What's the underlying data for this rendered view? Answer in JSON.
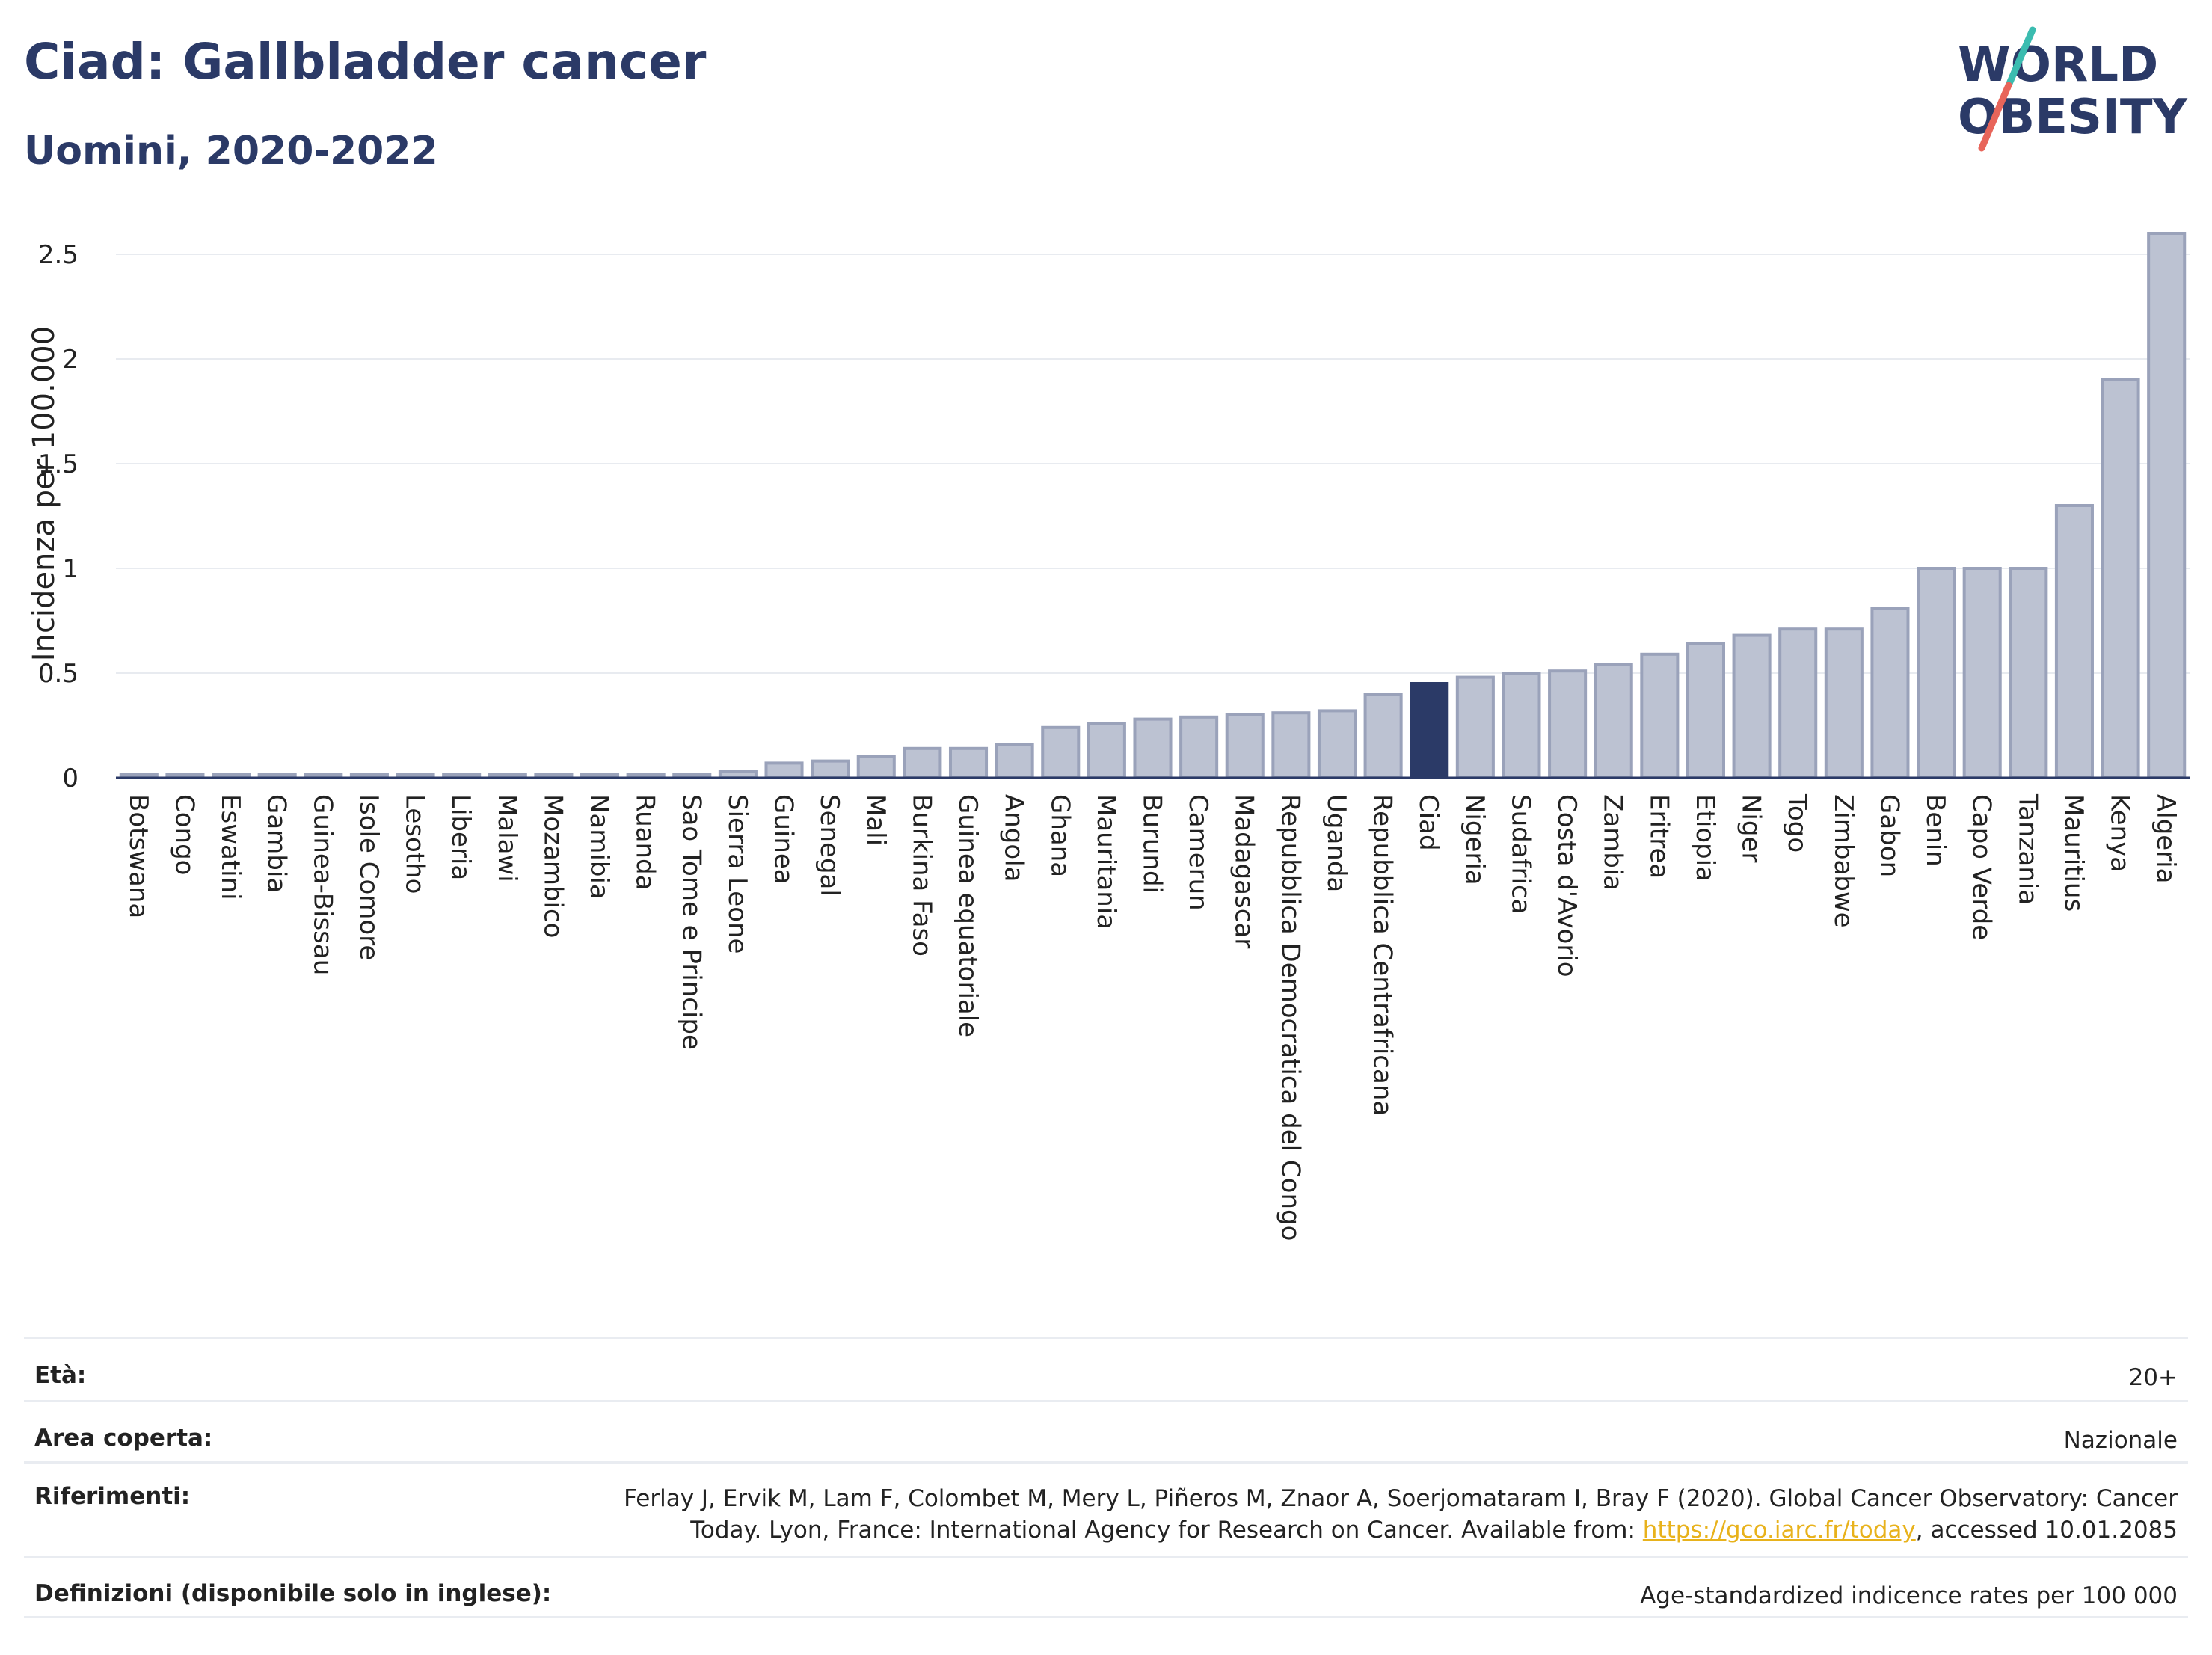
{
  "header": {
    "title": "Ciad: Gallbladder cancer",
    "subtitle": "Uomini, 2020-2022",
    "logo_line1": "WORLD",
    "logo_line2": "OBESITY"
  },
  "colors": {
    "bar": "#bcc2d2",
    "bar_stroke": "#9aa2ba",
    "highlight": "#2b3a67",
    "title": "#2b3a67",
    "logo_teal": "#3bbcb0",
    "logo_red": "#e8655a",
    "link": "#e8b21c"
  },
  "chart_data": {
    "type": "bar",
    "ylabel": "Incidenza per 100.000",
    "ylim": [
      0,
      2.6
    ],
    "yticks": [
      0,
      0.5,
      1,
      1.5,
      2,
      2.5
    ],
    "ytick_labels": [
      "0",
      "0.5",
      "1",
      "1.5",
      "2",
      "2.5"
    ],
    "highlight": "Ciad",
    "categories": [
      "Botswana",
      "Congo",
      "Eswatini",
      "Gambia",
      "Guinea-Bissau",
      "Isole Comore",
      "Lesotho",
      "Liberia",
      "Malawi",
      "Mozambico",
      "Namibia",
      "Ruanda",
      "Sao Tome e Principe",
      "Sierra Leone",
      "Guinea",
      "Senegal",
      "Mali",
      "Burkina Faso",
      "Guinea equatoriale",
      "Angola",
      "Ghana",
      "Mauritania",
      "Burundi",
      "Camerun",
      "Madagascar",
      "Repubblica Democratica del Congo",
      "Uganda",
      "Repubblica Centrafricana",
      "Ciad",
      "Nigeria",
      "Sudafrica",
      "Costa d'Avorio",
      "Zambia",
      "Eritrea",
      "Etiopia",
      "Niger",
      "Togo",
      "Zimbabwe",
      "Gabon",
      "Benin",
      "Capo Verde",
      "Tanzania",
      "Mauritius",
      "Kenya",
      "Algeria"
    ],
    "values": [
      0.01,
      0.01,
      0.01,
      0.01,
      0.01,
      0.01,
      0.01,
      0.01,
      0.01,
      0.01,
      0.01,
      0.01,
      0.01,
      0.03,
      0.07,
      0.08,
      0.1,
      0.14,
      0.14,
      0.16,
      0.24,
      0.26,
      0.28,
      0.29,
      0.3,
      0.31,
      0.32,
      0.4,
      0.45,
      0.48,
      0.5,
      0.51,
      0.54,
      0.59,
      0.64,
      0.68,
      0.71,
      0.71,
      0.81,
      1.0,
      1.0,
      1.0,
      1.3,
      1.9,
      2.6
    ],
    "grid": true,
    "legend": "none"
  },
  "info": {
    "age_label": "Età:",
    "age_value": "20+",
    "area_label": "Area coperta:",
    "area_value": "Nazionale",
    "ref_label": "Riferimenti:",
    "ref_text_1": "Ferlay J, Ervik M, Lam F, Colombet M, Mery L, Piñeros M, Znaor A, Soerjomataram I, Bray F (2020). Global Cancer Observatory: Cancer",
    "ref_text_2": "Today. Lyon, France: International Agency for Research on Cancer. Available from:",
    "ref_link": "https://gco.iarc.fr/today",
    "ref_text_3": ", accessed 10.01.2085",
    "def_label": "Definizioni (disponibile solo in inglese):",
    "def_value": "Age-standardized indicence rates per 100 000"
  }
}
